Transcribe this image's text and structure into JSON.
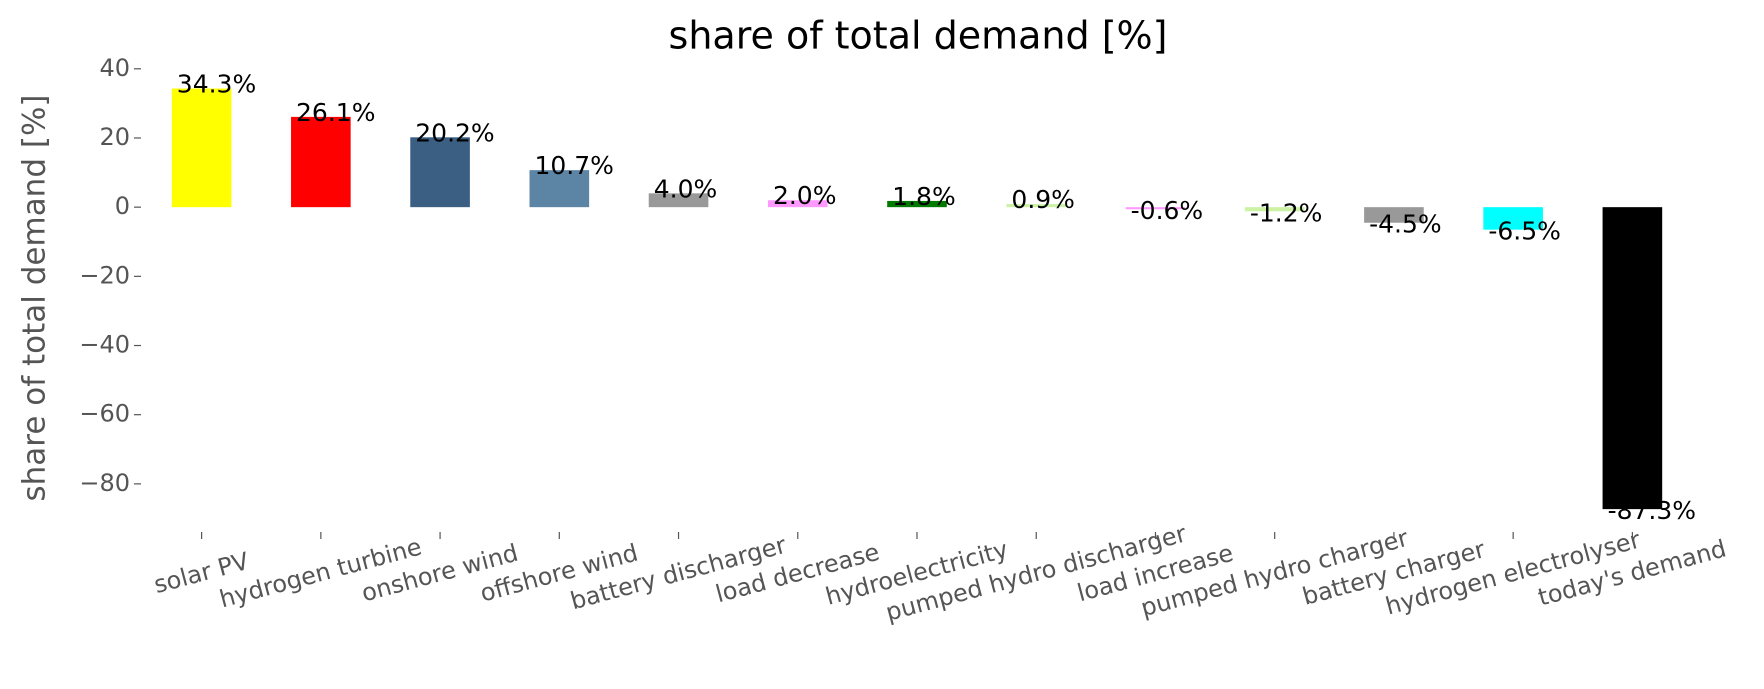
{
  "chart_data": {
    "type": "bar",
    "title": "share of total demand [%]",
    "ylabel": "share of total demand [%]",
    "categories": [
      "solar PV",
      "hydrogen turbine",
      "onshore wind",
      "offshore wind",
      "battery discharger",
      "load decrease",
      "hydroelectricity",
      "pumped hydro discharger",
      "load increase",
      "pumped hydro charger",
      "battery charger",
      "hydrogen electrolyser",
      "today's demand"
    ],
    "values": [
      34.3,
      26.1,
      20.2,
      10.7,
      4.0,
      2.0,
      1.8,
      0.9,
      -0.6,
      -1.2,
      -4.5,
      -6.5,
      -87.3
    ],
    "value_labels": [
      "34.3%",
      "26.1%",
      "20.2%",
      "10.7%",
      "4.0%",
      "2.0%",
      "1.8%",
      "0.9%",
      "-0.6%",
      "-1.2%",
      "-4.5%",
      "-6.5%",
      "-87.3%"
    ],
    "colors": [
      "#ffff00",
      "#ff0000",
      "#3a5f82",
      "#5b84a5",
      "#999999",
      "#ff99ff",
      "#007a00",
      "#ccf2a6",
      "#ff99ff",
      "#ccf2a6",
      "#999999",
      "#00ffff",
      "#000000"
    ],
    "ylim": [
      -91.6,
      41.1
    ],
    "yticks": [
      40,
      20,
      0,
      {
        "value": -20,
        "label": "−20"
      },
      {
        "value": -40,
        "label": "−40"
      },
      {
        "value": -60,
        "label": "−60"
      },
      {
        "value": -80,
        "label": "−80"
      }
    ],
    "grid": false
  }
}
